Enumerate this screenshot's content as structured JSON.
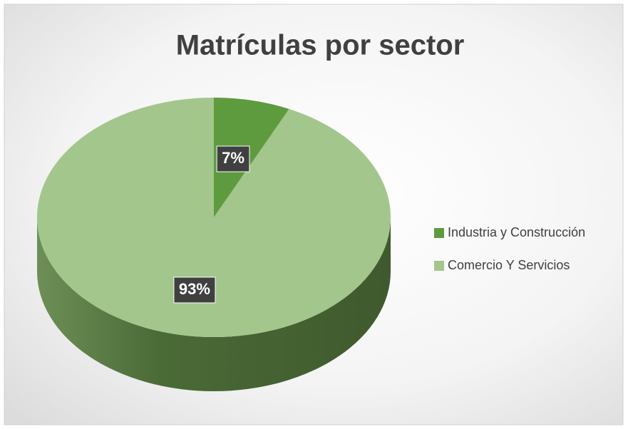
{
  "chart_data": {
    "type": "pie",
    "title": "Matrículas por sector",
    "categories": [
      "Industria y Construcción",
      "Comercio Y Servicios"
    ],
    "values": [
      7,
      93
    ],
    "value_labels": [
      "7%",
      "93%"
    ],
    "colors": [
      "#5e9b3f",
      "#a3c68c"
    ],
    "legend": "right"
  }
}
